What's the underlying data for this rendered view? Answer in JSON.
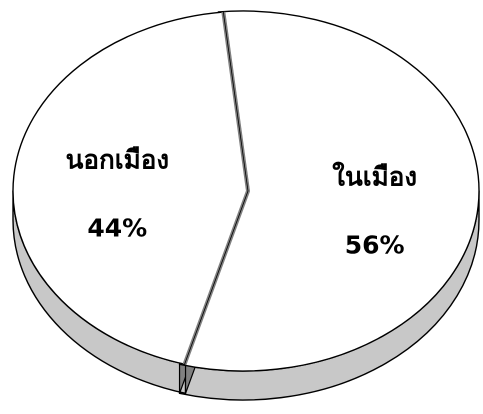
{
  "chart_data": {
    "type": "pie",
    "style": "3d",
    "slices": [
      {
        "label": "ในเมือง",
        "value": 56,
        "value_label": "56%"
      },
      {
        "label": "นอกเมือง",
        "value": 44,
        "value_label": "44%"
      }
    ],
    "colors": {
      "top": "#ffffff",
      "side": "#c8c8c8",
      "outline": "#000000",
      "gap": "#808080"
    }
  }
}
